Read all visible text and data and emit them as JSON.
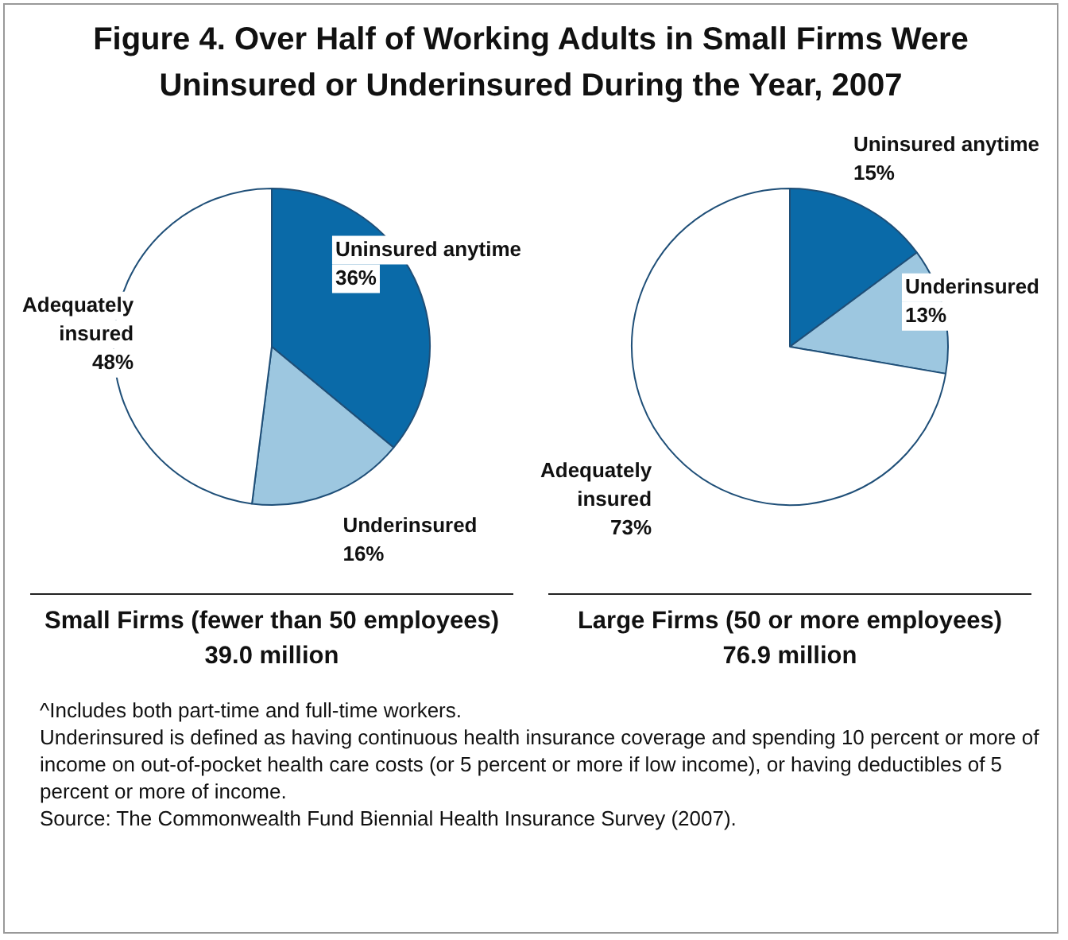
{
  "chart_data": [
    {
      "type": "pie",
      "title": "Figure 4. Over Half of Working Adults in Small Firms Were Uninsured or Underinsured During the Year, 2007",
      "xlabel": "Small Firms (fewer than 50 employees)",
      "annotations": [
        "39.0 million"
      ],
      "categories": [
        "Uninsured anytime",
        "Underinsured",
        "Adequately insured"
      ],
      "values": [
        36,
        16,
        48
      ],
      "value_labels": [
        "36%",
        "16%",
        "48%"
      ],
      "colors": [
        "#0a6aa8",
        "#9dc7e0",
        "#ffffff"
      ],
      "legend": false
    },
    {
      "type": "pie",
      "xlabel": "Large Firms (50 or more employees)",
      "annotations": [
        "76.9 million",
        "^Includes both part-time and full-time workers.",
        "Underinsured is defined as having continuous health insurance coverage and spending 10 percent or more of income on out-of-pocket health care costs (or 5 percent or more if low income), or having deductibles of 5 percent or more of income.",
        "Source: The Commonwealth Fund Biennial Health Insurance Survey (2007)."
      ],
      "categories": [
        "Uninsured anytime",
        "Underinsured",
        "Adequately insured"
      ],
      "values": [
        15,
        13,
        73
      ],
      "value_labels": [
        "15%",
        "13%",
        "73%"
      ],
      "colors": [
        "#0a6aa8",
        "#9dc7e0",
        "#ffffff"
      ],
      "legend": false
    }
  ]
}
